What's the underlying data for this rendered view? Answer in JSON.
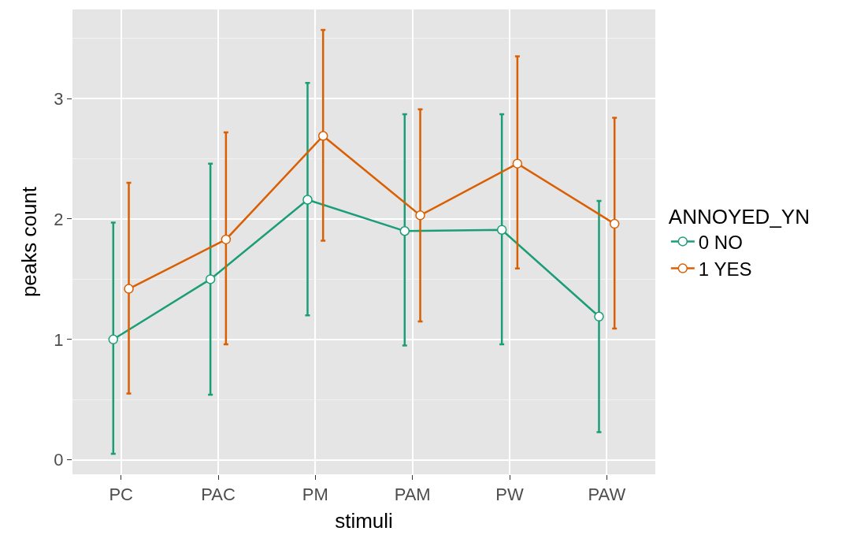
{
  "chart_data": {
    "type": "line",
    "xlabel": "stimuli",
    "ylabel": "peaks count",
    "legend_title": "ANNOYED_YN",
    "categories": [
      "PC",
      "PAC",
      "PM",
      "PAM",
      "PW",
      "PAW"
    ],
    "series": [
      {
        "name": "0 NO",
        "color": "#1b9e77",
        "values": [
          1.0,
          1.5,
          2.16,
          1.9,
          1.91,
          1.19
        ],
        "errors": [
          [
            0.05,
            1.97
          ],
          [
            0.54,
            2.46
          ],
          [
            1.2,
            3.13
          ],
          [
            0.95,
            2.87
          ],
          [
            0.96,
            2.87
          ],
          [
            0.23,
            2.15
          ]
        ]
      },
      {
        "name": "1 YES",
        "color": "#d95f02",
        "values": [
          1.42,
          1.83,
          2.69,
          2.03,
          2.46,
          1.96
        ],
        "errors": [
          [
            0.55,
            2.3
          ],
          [
            0.96,
            2.72
          ],
          [
            1.82,
            3.57
          ],
          [
            1.15,
            2.91
          ],
          [
            1.59,
            3.35
          ],
          [
            1.09,
            2.84
          ]
        ]
      }
    ],
    "ylim": [
      -0.12,
      3.74
    ],
    "yticks": [
      0,
      1,
      2,
      3
    ],
    "grid": true,
    "legend": "right",
    "marker": "circle",
    "line_style": "solid"
  }
}
